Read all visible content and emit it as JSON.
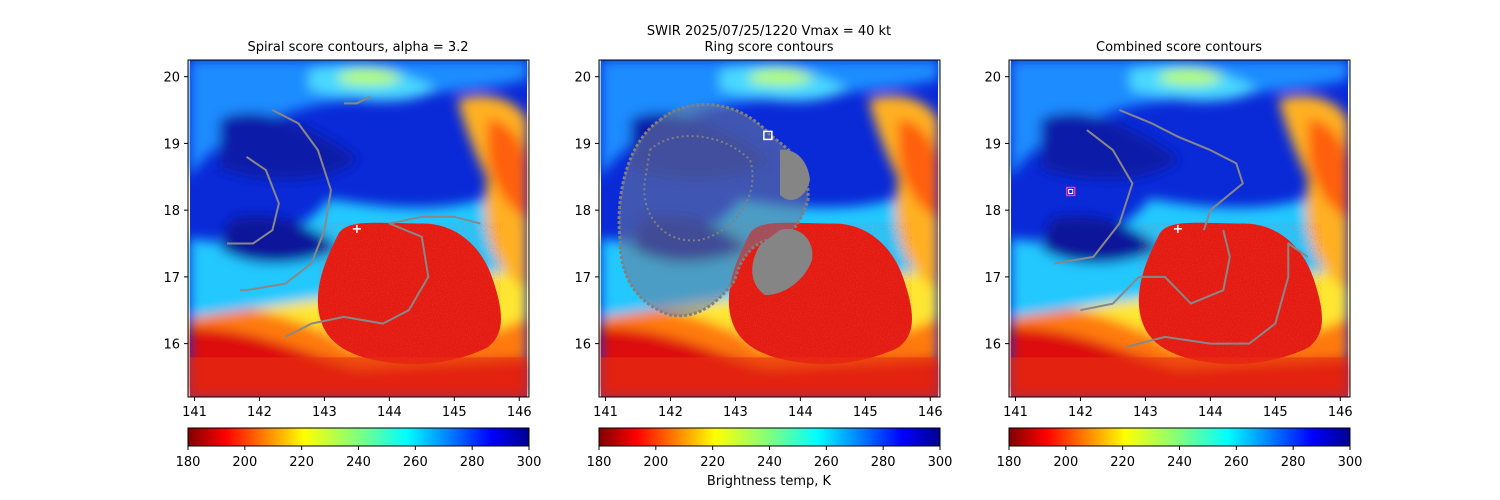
{
  "figure": {
    "suptitle_line1": "SWIR  2025/07/25/1220    Vmax = 40 kt",
    "colorbar_label": "Brightness temp, K"
  },
  "chart_data": [
    {
      "type": "heatmap",
      "title": "Spiral score contours, alpha =  3.2",
      "xlim": [
        140.9,
        146.15
      ],
      "ylim": [
        15.2,
        20.25
      ],
      "xticks": [
        "141",
        "142",
        "143",
        "144",
        "145",
        "146"
      ],
      "yticks": [
        "16",
        "17",
        "18",
        "19",
        "20"
      ],
      "colorbar": {
        "range": [
          180,
          300
        ],
        "ticks": [
          "180",
          "200",
          "220",
          "240",
          "260",
          "280",
          "300"
        ],
        "colormap": "jet_r"
      },
      "center_marker": {
        "x": 143.5,
        "y": 17.72,
        "symbol": "+",
        "color": "#ffffff"
      },
      "contours": [
        [
          [
            142.2,
            19.5
          ],
          [
            142.6,
            19.3
          ],
          [
            142.9,
            18.9
          ],
          [
            143.1,
            18.3
          ],
          [
            143.0,
            17.7
          ],
          [
            142.8,
            17.2
          ],
          [
            142.4,
            16.9
          ],
          [
            141.8,
            16.8
          ],
          [
            141.7,
            16.8
          ]
        ],
        [
          [
            141.8,
            18.8
          ],
          [
            142.1,
            18.6
          ],
          [
            142.3,
            18.1
          ],
          [
            142.2,
            17.7
          ],
          [
            141.9,
            17.5
          ],
          [
            141.5,
            17.5
          ]
        ],
        [
          [
            142.4,
            16.1
          ],
          [
            142.8,
            16.3
          ],
          [
            143.3,
            16.4
          ],
          [
            143.9,
            16.3
          ],
          [
            144.3,
            16.5
          ],
          [
            144.6,
            17.0
          ],
          [
            144.5,
            17.6
          ],
          [
            144.0,
            17.8
          ],
          [
            144.5,
            17.9
          ],
          [
            145.0,
            17.9
          ],
          [
            145.4,
            17.8
          ]
        ],
        [
          [
            143.3,
            19.6
          ],
          [
            143.5,
            19.6
          ],
          [
            143.7,
            19.7
          ]
        ]
      ]
    },
    {
      "type": "heatmap",
      "title": "Ring score contours",
      "xlim": [
        140.9,
        146.15
      ],
      "ylim": [
        15.2,
        20.25
      ],
      "xticks": [
        "141",
        "142",
        "143",
        "144",
        "145",
        "146"
      ],
      "yticks": [
        "16",
        "17",
        "18",
        "19",
        "20"
      ],
      "colorbar": {
        "range": [
          180,
          300
        ],
        "ticks": [
          "180",
          "200",
          "220",
          "240",
          "260",
          "280",
          "300"
        ],
        "colormap": "jet_r"
      },
      "center_marker": {
        "x": 143.5,
        "y": 19.12,
        "symbol": "square",
        "color": "#ffffff"
      },
      "contours": []
    },
    {
      "type": "heatmap",
      "title": "Combined score contours",
      "xlim": [
        140.9,
        146.15
      ],
      "ylim": [
        15.2,
        20.25
      ],
      "xticks": [
        "141",
        "142",
        "143",
        "144",
        "145",
        "146"
      ],
      "yticks": [
        "16",
        "17",
        "18",
        "19",
        "20"
      ],
      "colorbar": {
        "range": [
          180,
          300
        ],
        "ticks": [
          "180",
          "200",
          "220",
          "240",
          "260",
          "280",
          "300"
        ],
        "colormap": "jet_r"
      },
      "center_marker": {
        "x": 143.5,
        "y": 17.72,
        "symbol": "+",
        "color": "#ffffff"
      },
      "best_marker": {
        "x": 141.85,
        "y": 18.28,
        "symbol": "square",
        "color": "#ff3399"
      },
      "contours": [
        [
          [
            142.1,
            19.2
          ],
          [
            142.5,
            18.9
          ],
          [
            142.8,
            18.4
          ],
          [
            142.6,
            17.8
          ],
          [
            142.2,
            17.3
          ],
          [
            141.6,
            17.2
          ]
        ],
        [
          [
            142.6,
            19.5
          ],
          [
            143.1,
            19.3
          ],
          [
            143.5,
            19.1
          ],
          [
            144.0,
            18.9
          ],
          [
            144.4,
            18.7
          ],
          [
            144.5,
            18.4
          ],
          [
            144.0,
            18.0
          ],
          [
            143.9,
            17.7
          ]
        ],
        [
          [
            142.0,
            16.5
          ],
          [
            142.5,
            16.6
          ],
          [
            142.9,
            17.0
          ],
          [
            143.3,
            17.0
          ],
          [
            143.7,
            16.6
          ],
          [
            144.2,
            16.8
          ],
          [
            144.3,
            17.3
          ],
          [
            144.2,
            17.7
          ]
        ],
        [
          [
            142.7,
            15.95
          ],
          [
            143.3,
            16.1
          ],
          [
            144.0,
            16.0
          ],
          [
            144.6,
            16.0
          ],
          [
            145.0,
            16.3
          ],
          [
            145.2,
            17.0
          ],
          [
            145.2,
            17.5
          ],
          [
            145.5,
            17.3
          ]
        ]
      ]
    }
  ]
}
